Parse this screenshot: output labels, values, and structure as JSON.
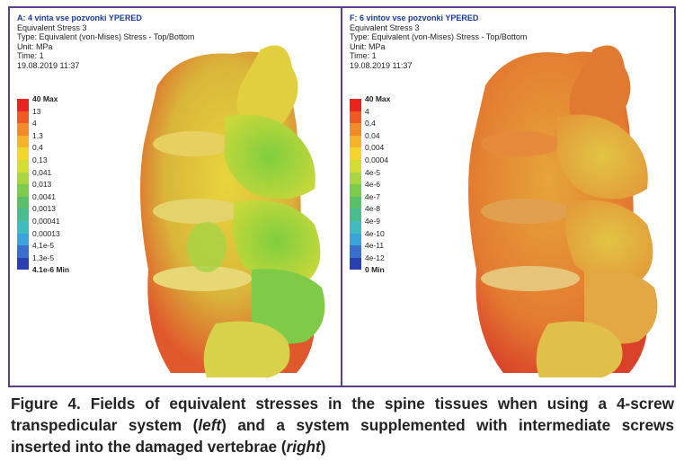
{
  "panels": [
    {
      "title": "A: 4 vinta vse pozvonki YPERED",
      "info": [
        "Equivalent Stress 3",
        "Type: Equivalent (von-Mises) Stress - Top/Bottom",
        "Unit: MPa",
        "Time: 1",
        "19.08.2019 11:37"
      ],
      "legend": [
        "40 Max",
        "13",
        "4",
        "1,3",
        "0,4",
        "0,13",
        "0,041",
        "0,013",
        "0,0041",
        "0,0013",
        "0,00041",
        "0,00013",
        "4,1e-5",
        "1,3e-5",
        "4.1e-6 Min"
      ]
    },
    {
      "title": "F: 6 vintov vse pozvonki YPERED",
      "info": [
        "Equivalent Stress 3",
        "Type: Equivalent (von-Mises) Stress - Top/Bottom",
        "Unit: MPa",
        "Time: 1",
        "19.08.2019 11:37"
      ],
      "legend": [
        "40 Max",
        "4",
        "0,4",
        "0,04",
        "0,004",
        "0,0004",
        "4e-5",
        "4e-6",
        "4e-7",
        "4e-8",
        "4e-9",
        "4e-10",
        "4e-11",
        "4e-12",
        "0 Min"
      ]
    }
  ],
  "caption": [
    "Figure 4. Fields of equivalent stresses in the spine tissues when using a 4-screw transpedicular system (",
    "left",
    ") and a system supplemented with intermediate screws inserted into the damaged vertebrae (",
    "right",
    ")"
  ]
}
